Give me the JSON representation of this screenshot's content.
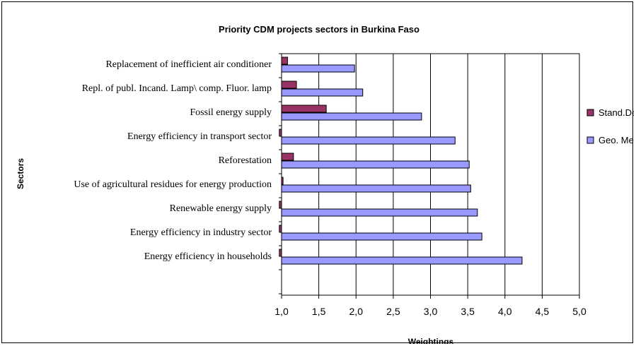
{
  "chart_data": {
    "type": "bar",
    "orientation": "horizontal",
    "title": "Priority CDM projects sectors in Burkina Faso",
    "xlabel": "Weightings",
    "ylabel": "Sectors",
    "xlim": [
      1.0,
      5.0
    ],
    "xticks": [
      "1,0",
      "1,5",
      "2,0",
      "2,5",
      "3,0",
      "3,5",
      "4,0",
      "4,5",
      "5,0"
    ],
    "grid": "vertical",
    "legend_position": "right",
    "categories": [
      "Replacement of inefficient air conditioner",
      "Repl. of  publ. Incand.  Lamp\\ comp. Fluor. lamp",
      "Fossil energy supply",
      "Energy efficiency in transport sector",
      "Reforestation",
      "Use of agricultural residues for energy production",
      "Renewable energy supply",
      "Energy efficiency in industry sector",
      "Energy efficiency in households"
    ],
    "series": [
      {
        "name": "Stand.Devi.",
        "color": "#993366",
        "values": [
          1.08,
          1.2,
          1.6,
          0.97,
          1.16,
          1.02,
          0.97,
          0.97,
          0.97
        ]
      },
      {
        "name": "Geo. Mean",
        "color": "#9999FF",
        "values": [
          1.98,
          2.09,
          2.88,
          3.33,
          3.52,
          3.54,
          3.63,
          3.69,
          4.23
        ]
      }
    ]
  }
}
